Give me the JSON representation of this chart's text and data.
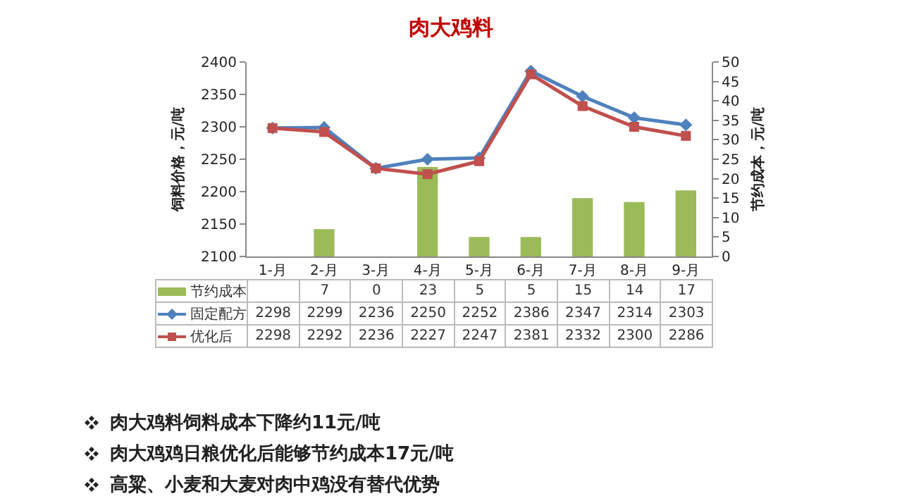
{
  "chart_data": {
    "type": "bar",
    "title": "肉大鸡料",
    "categories": [
      "1-月",
      "2-月",
      "3-月",
      "4-月",
      "5-月",
      "6-月",
      "7-月",
      "8-月",
      "9-月"
    ],
    "series": [
      {
        "name": "节约成本",
        "axis": "y2",
        "color": "#9bbb59",
        "values": [
          null,
          7,
          0,
          23,
          5,
          5,
          15,
          14,
          17
        ]
      },
      {
        "name": "固定配方",
        "type": "line",
        "color": "#4f81bd",
        "marker": "diamond",
        "values": [
          2298,
          2299,
          2236,
          2250,
          2252,
          2386,
          2347,
          2314,
          2303
        ]
      },
      {
        "name": "优化后",
        "type": "line",
        "color": "#c0504d",
        "marker": "square",
        "values": [
          2298,
          2292,
          2236,
          2227,
          2247,
          2381,
          2332,
          2300,
          2286
        ]
      }
    ],
    "ylabel": "饲料价格，元/吨",
    "y2label": "节约成本，元/吨",
    "ylim": [
      2100,
      2400
    ],
    "yticks": [
      2100,
      2150,
      2200,
      2250,
      2300,
      2350,
      2400
    ],
    "y2lim": [
      0,
      50
    ],
    "y2ticks": [
      0,
      5,
      10,
      15,
      20,
      25,
      30,
      35,
      40,
      45,
      50
    ],
    "grid": false,
    "legend": "bottom",
    "data_labels": true,
    "annotations": [
      "肉大鸡料饲料成本下降约11元/吨",
      "肉大鸡鸡日粮优化后能够节约成本17元/吨",
      "高粱、小麦和大麦对肉中鸡没有替代优势"
    ]
  }
}
